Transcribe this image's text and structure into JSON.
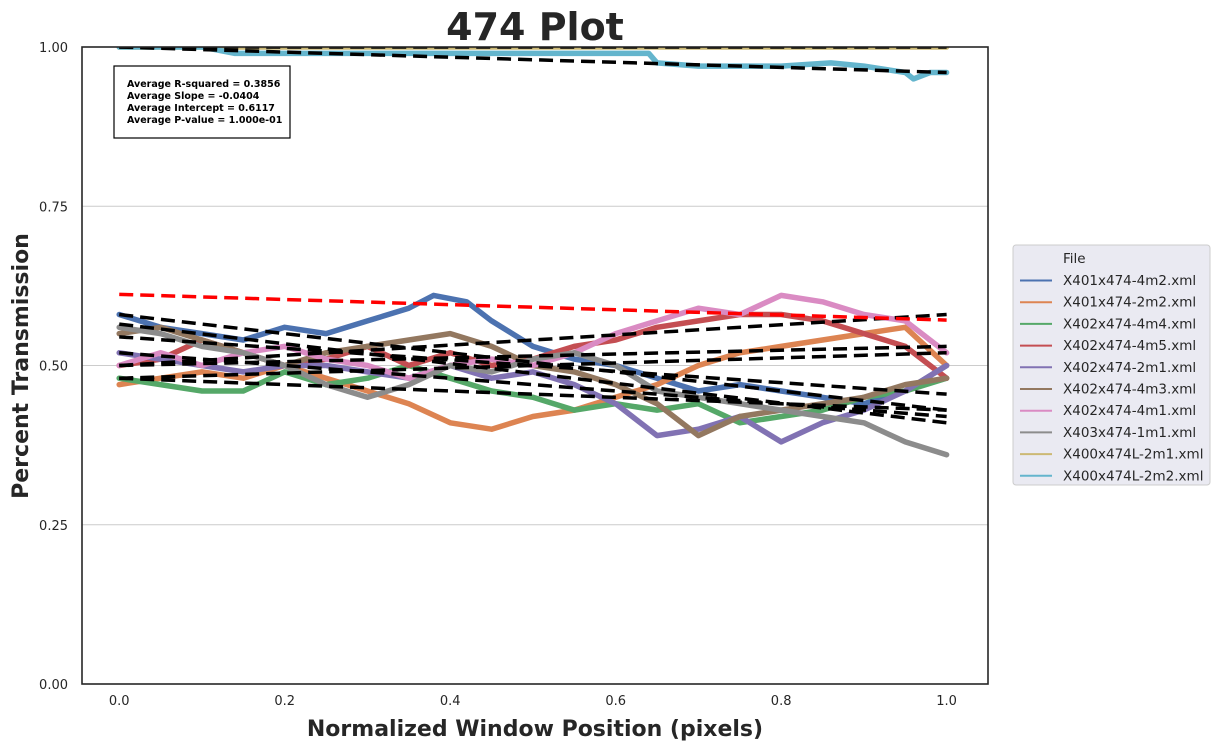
{
  "chart_data": {
    "type": "line",
    "title": "474 Plot",
    "xlabel": "Normalized Window Position (pixels)",
    "ylabel": "Percent Transmission",
    "xlim": [
      -0.045,
      1.05
    ],
    "ylim": [
      0.0,
      1.0
    ],
    "xticks": [
      0.0,
      0.2,
      0.4,
      0.6,
      0.8,
      1.0
    ],
    "xtick_labels": [
      "0.0",
      "0.2",
      "0.4",
      "0.6",
      "0.8",
      "1.0"
    ],
    "yticks": [
      0.0,
      0.25,
      0.5,
      0.75,
      1.0
    ],
    "ytick_labels": [
      "0.00",
      "0.25",
      "0.50",
      "0.75",
      "1.00"
    ],
    "grid": "horizontal",
    "legend": {
      "title": "File",
      "placement": "outside-right"
    },
    "stats_box": [
      "Average R-squared = 0.3856",
      "Average Slope = -0.0404",
      "Average Intercept = 0.6117",
      "Average P-value = 1.000e-01"
    ],
    "series": [
      {
        "name": "X401x474-4m2.xml",
        "color": "#4c72b0",
        "x": [
          0.0,
          0.05,
          0.1,
          0.15,
          0.2,
          0.25,
          0.3,
          0.35,
          0.38,
          0.42,
          0.45,
          0.5,
          0.55,
          0.6,
          0.65,
          0.7,
          0.75,
          0.8,
          0.85,
          0.9,
          0.95,
          1.0
        ],
        "y": [
          0.58,
          0.56,
          0.55,
          0.54,
          0.56,
          0.55,
          0.57,
          0.59,
          0.61,
          0.6,
          0.57,
          0.53,
          0.51,
          0.5,
          0.48,
          0.46,
          0.47,
          0.46,
          0.45,
          0.44,
          0.46,
          0.5
        ],
        "fit": [
          0.58,
          0.43
        ]
      },
      {
        "name": "X401x474-2m2.xml",
        "color": "#dd8452",
        "x": [
          0.0,
          0.05,
          0.1,
          0.15,
          0.2,
          0.25,
          0.3,
          0.35,
          0.4,
          0.45,
          0.5,
          0.55,
          0.6,
          0.65,
          0.7,
          0.75,
          0.8,
          0.85,
          0.9,
          0.95,
          1.0
        ],
        "y": [
          0.47,
          0.48,
          0.49,
          0.48,
          0.5,
          0.48,
          0.46,
          0.44,
          0.41,
          0.4,
          0.42,
          0.43,
          0.45,
          0.47,
          0.5,
          0.52,
          0.53,
          0.54,
          0.55,
          0.56,
          0.5
        ],
        "fit": [
          0.48,
          0.52
        ]
      },
      {
        "name": "X402x474-4m4.xml",
        "color": "#55a868",
        "x": [
          0.0,
          0.05,
          0.1,
          0.15,
          0.2,
          0.25,
          0.3,
          0.35,
          0.4,
          0.45,
          0.5,
          0.55,
          0.6,
          0.65,
          0.7,
          0.75,
          0.8,
          0.85,
          0.9,
          0.95,
          1.0
        ],
        "y": [
          0.48,
          0.47,
          0.46,
          0.46,
          0.49,
          0.47,
          0.48,
          0.5,
          0.48,
          0.46,
          0.45,
          0.43,
          0.44,
          0.43,
          0.44,
          0.41,
          0.42,
          0.43,
          0.45,
          0.46,
          0.48
        ],
        "fit": [
          0.48,
          0.43
        ]
      },
      {
        "name": "X402x474-4m5.xml",
        "color": "#c44e52",
        "x": [
          0.0,
          0.05,
          0.1,
          0.15,
          0.2,
          0.25,
          0.3,
          0.35,
          0.4,
          0.45,
          0.5,
          0.55,
          0.6,
          0.65,
          0.7,
          0.75,
          0.8,
          0.85,
          0.9,
          0.95,
          1.0
        ],
        "y": [
          0.5,
          0.51,
          0.54,
          0.52,
          0.5,
          0.51,
          0.53,
          0.5,
          0.52,
          0.5,
          0.51,
          0.53,
          0.54,
          0.56,
          0.57,
          0.58,
          0.58,
          0.57,
          0.55,
          0.53,
          0.48
        ],
        "fit": [
          0.5,
          0.53
        ]
      },
      {
        "name": "X402x474-2m1.xml",
        "color": "#8172b3",
        "x": [
          0.0,
          0.05,
          0.1,
          0.15,
          0.2,
          0.25,
          0.3,
          0.35,
          0.4,
          0.45,
          0.5,
          0.55,
          0.6,
          0.65,
          0.7,
          0.75,
          0.8,
          0.85,
          0.9,
          0.95,
          1.0
        ],
        "y": [
          0.52,
          0.51,
          0.5,
          0.49,
          0.5,
          0.5,
          0.49,
          0.48,
          0.5,
          0.48,
          0.49,
          0.47,
          0.44,
          0.39,
          0.4,
          0.42,
          0.38,
          0.41,
          0.43,
          0.46,
          0.5
        ],
        "fit": [
          0.52,
          0.42
        ]
      },
      {
        "name": "X402x474-4m3.xml",
        "color": "#937860",
        "x": [
          0.0,
          0.05,
          0.1,
          0.15,
          0.2,
          0.25,
          0.3,
          0.35,
          0.4,
          0.45,
          0.5,
          0.55,
          0.6,
          0.65,
          0.7,
          0.75,
          0.8,
          0.85,
          0.9,
          0.95,
          1.0
        ],
        "y": [
          0.55,
          0.56,
          0.54,
          0.52,
          0.5,
          0.52,
          0.53,
          0.54,
          0.55,
          0.53,
          0.5,
          0.49,
          0.47,
          0.44,
          0.39,
          0.42,
          0.43,
          0.44,
          0.45,
          0.47,
          0.48
        ],
        "fit": [
          0.545,
          0.455
        ]
      },
      {
        "name": "X402x474-4m1.xml",
        "color": "#da8bc3",
        "x": [
          0.0,
          0.05,
          0.1,
          0.15,
          0.2,
          0.25,
          0.3,
          0.35,
          0.4,
          0.45,
          0.5,
          0.55,
          0.6,
          0.65,
          0.7,
          0.75,
          0.8,
          0.85,
          0.9,
          0.95,
          1.0
        ],
        "y": [
          0.5,
          0.52,
          0.5,
          0.52,
          0.53,
          0.51,
          0.5,
          0.48,
          0.5,
          0.51,
          0.5,
          0.52,
          0.55,
          0.57,
          0.59,
          0.58,
          0.61,
          0.6,
          0.58,
          0.57,
          0.52
        ],
        "fit": [
          0.5,
          0.58
        ]
      },
      {
        "name": "X403x474-1m1.xml",
        "color": "#8c8c8c",
        "x": [
          0.0,
          0.05,
          0.1,
          0.15,
          0.2,
          0.25,
          0.3,
          0.35,
          0.4,
          0.45,
          0.5,
          0.55,
          0.6,
          0.65,
          0.7,
          0.75,
          0.8,
          0.85,
          0.9,
          0.95,
          1.0
        ],
        "y": [
          0.56,
          0.55,
          0.53,
          0.52,
          0.5,
          0.47,
          0.45,
          0.47,
          0.5,
          0.49,
          0.51,
          0.52,
          0.5,
          0.46,
          0.45,
          0.44,
          0.43,
          0.42,
          0.41,
          0.38,
          0.36
        ],
        "fit": [
          0.565,
          0.41
        ]
      },
      {
        "name": "X400x474L-2m1.xml",
        "color": "#ccb974",
        "x": [
          0.0,
          0.2,
          0.4,
          0.6,
          0.8,
          1.0
        ],
        "y": [
          1.0,
          1.0,
          1.0,
          1.0,
          1.0,
          1.0
        ],
        "fit": [
          1.0,
          1.0
        ]
      },
      {
        "name": "X400x474L-2m2.xml",
        "color": "#64b5cd",
        "x": [
          0.0,
          0.1,
          0.14,
          0.2,
          0.3,
          0.4,
          0.5,
          0.6,
          0.64,
          0.65,
          0.7,
          0.8,
          0.86,
          0.9,
          0.95,
          0.96,
          0.98,
          1.0
        ],
        "y": [
          1.0,
          1.0,
          0.99,
          0.99,
          0.99,
          0.99,
          0.99,
          0.99,
          0.99,
          0.975,
          0.97,
          0.97,
          0.975,
          0.97,
          0.96,
          0.95,
          0.96,
          0.96
        ],
        "fit": [
          1.0,
          0.96
        ]
      }
    ],
    "average_fit": {
      "color": "#ff0000",
      "y_start": 0.6117,
      "slope": -0.0404
    }
  }
}
